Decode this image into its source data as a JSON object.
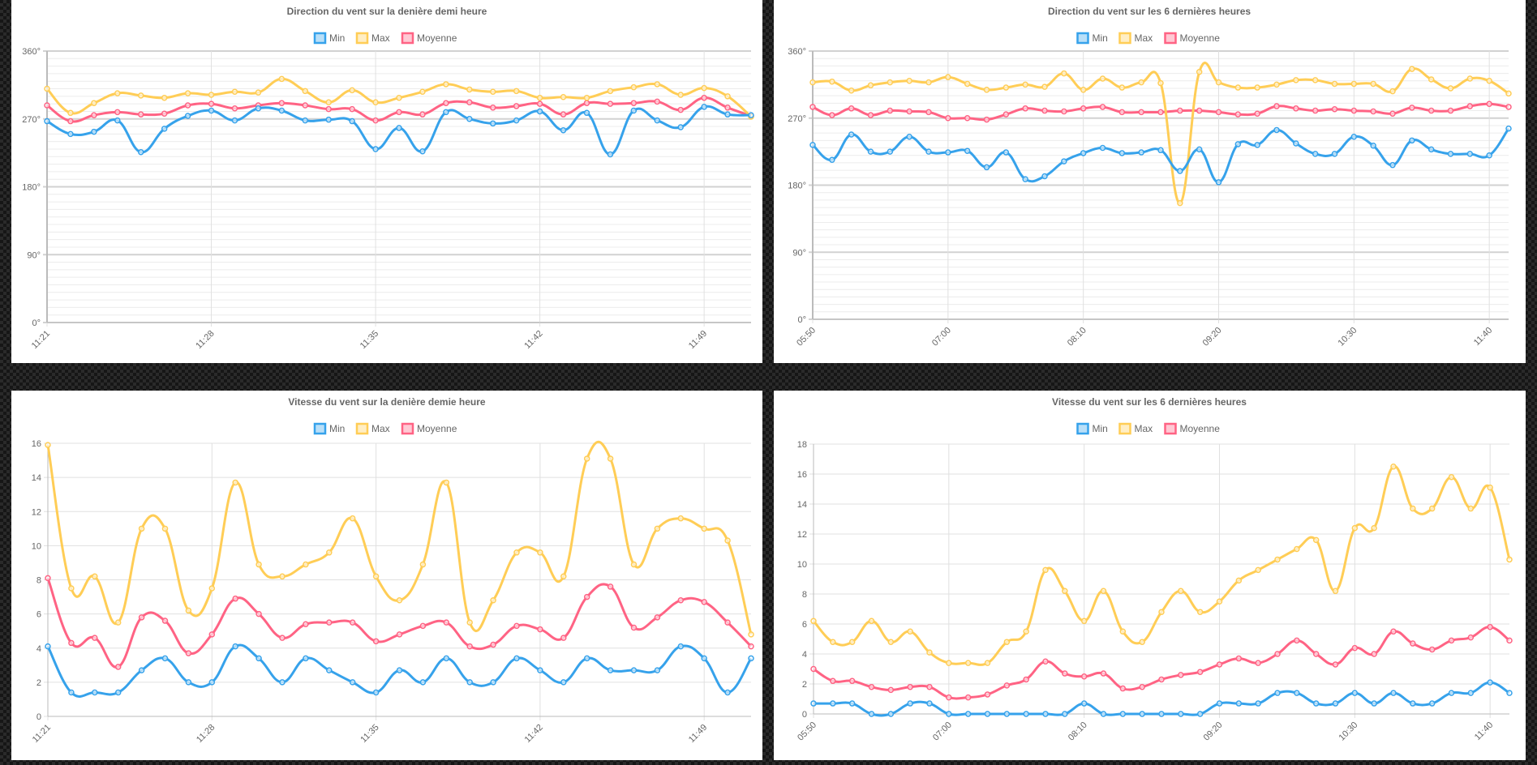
{
  "colors": {
    "min": "#36a2eb",
    "max": "#ffcd56",
    "avg": "#ff6384",
    "grid": "#e0e0e0",
    "text": "#666666"
  },
  "legend": {
    "min": "Min",
    "max": "Max",
    "avg": "Moyenne"
  },
  "chart_data": [
    {
      "type": "line",
      "title": "Direction du vent sur la denière demi heure",
      "xlabel": "",
      "ylabel": "",
      "ylim": [
        0,
        360
      ],
      "yticks": [
        "0°",
        "90°",
        "180°",
        "270°",
        "360°"
      ],
      "xticks": [
        "11:21",
        "11:28",
        "11:35",
        "11:42",
        "11:49"
      ],
      "legend_position": "top",
      "grid": true,
      "series": [
        {
          "name": "Min",
          "values": [
            267,
            250,
            253,
            268,
            226,
            257,
            274,
            281,
            268,
            284,
            281,
            268,
            269,
            267,
            230,
            258,
            227,
            279,
            270,
            264,
            268,
            280,
            255,
            278,
            223,
            281,
            268,
            259,
            286,
            276,
            275
          ]
        },
        {
          "name": "Max",
          "values": [
            310,
            278,
            291,
            304,
            301,
            298,
            304,
            302,
            306,
            305,
            323,
            307,
            292,
            308,
            292,
            298,
            306,
            316,
            309,
            306,
            307,
            298,
            299,
            298,
            307,
            312,
            316,
            302,
            311,
            300,
            273
          ]
        },
        {
          "name": "Moyenne",
          "values": [
            288,
            267,
            275,
            279,
            276,
            277,
            288,
            290,
            284,
            288,
            291,
            288,
            283,
            283,
            268,
            279,
            276,
            291,
            292,
            285,
            287,
            290,
            276,
            291,
            290,
            291,
            293,
            282,
            298,
            285,
            274
          ]
        }
      ]
    },
    {
      "type": "line",
      "title": "Direction du vent sur les 6 dernières heures",
      "xlabel": "",
      "ylabel": "",
      "ylim": [
        0,
        360
      ],
      "yticks": [
        "0°",
        "90°",
        "180°",
        "270°",
        "360°"
      ],
      "xticks": [
        "05:50",
        "07:00",
        "08:10",
        "09:20",
        "10:30",
        "11:40"
      ],
      "legend_position": "top",
      "grid": true,
      "series": [
        {
          "name": "Min",
          "values": [
            234,
            214,
            248,
            225,
            225,
            245,
            225,
            224,
            226,
            204,
            224,
            188,
            192,
            212,
            223,
            230,
            223,
            224,
            227,
            199,
            228,
            184,
            235,
            234,
            254,
            236,
            222,
            222,
            245,
            233,
            207,
            240,
            228,
            222,
            222,
            220,
            256
          ]
        },
        {
          "name": "Max",
          "values": [
            318,
            319,
            307,
            314,
            318,
            320,
            318,
            325,
            316,
            308,
            311,
            315,
            312,
            330,
            308,
            323,
            311,
            318,
            317,
            156,
            332,
            318,
            311,
            311,
            315,
            321,
            321,
            316,
            316,
            316,
            306,
            336,
            322,
            310,
            323,
            320,
            303
          ]
        },
        {
          "name": "Moyenne",
          "values": [
            285,
            274,
            283,
            274,
            280,
            279,
            278,
            270,
            270,
            268,
            275,
            283,
            280,
            279,
            283,
            285,
            278,
            278,
            278,
            280,
            280,
            278,
            275,
            276,
            286,
            283,
            280,
            282,
            280,
            279,
            276,
            284,
            280,
            280,
            286,
            289,
            285
          ]
        }
      ]
    },
    {
      "type": "line",
      "title": "Vitesse du vent sur la denière demie heure",
      "xlabel": "",
      "ylabel": "",
      "ylim": [
        0,
        16
      ],
      "yticks": [
        "0",
        "2",
        "4",
        "6",
        "8",
        "10",
        "12",
        "14",
        "16"
      ],
      "xticks": [
        "11:21",
        "11:28",
        "11:35",
        "11:42",
        "11:49"
      ],
      "legend_position": "top",
      "grid": true,
      "series": [
        {
          "name": "Min",
          "values": [
            4.1,
            1.4,
            1.4,
            1.4,
            2.7,
            3.4,
            2.0,
            2.0,
            4.1,
            3.4,
            2.0,
            3.4,
            2.7,
            2.0,
            1.4,
            2.7,
            2.0,
            3.4,
            2.0,
            2.0,
            3.4,
            2.7,
            2.0,
            3.4,
            2.7,
            2.7,
            2.7,
            4.1,
            3.4,
            1.4,
            3.4
          ]
        },
        {
          "name": "Max",
          "values": [
            15.9,
            7.5,
            8.2,
            5.5,
            11.0,
            11.0,
            6.2,
            7.5,
            13.7,
            8.9,
            8.2,
            8.9,
            9.6,
            11.6,
            8.2,
            6.8,
            8.9,
            13.7,
            5.5,
            6.8,
            9.6,
            9.6,
            8.2,
            15.1,
            15.1,
            8.9,
            11.0,
            11.6,
            11.0,
            10.3,
            4.8
          ]
        },
        {
          "name": "Moyenne",
          "values": [
            8.1,
            4.3,
            4.6,
            2.9,
            5.8,
            5.6,
            3.7,
            4.8,
            6.9,
            6.0,
            4.6,
            5.4,
            5.5,
            5.5,
            4.4,
            4.8,
            5.3,
            5.5,
            4.1,
            4.2,
            5.3,
            5.1,
            4.6,
            7.0,
            7.6,
            5.2,
            5.8,
            6.8,
            6.7,
            5.5,
            4.1
          ]
        }
      ]
    },
    {
      "type": "line",
      "title": "Vitesse du vent sur les 6 dernières heures",
      "xlabel": "",
      "ylabel": "",
      "ylim": [
        0,
        18
      ],
      "yticks": [
        "0",
        "2",
        "4",
        "6",
        "8",
        "10",
        "12",
        "14",
        "16",
        "18"
      ],
      "xticks": [
        "05:50",
        "07:00",
        "08:10",
        "09:20",
        "10:30",
        "11:40"
      ],
      "legend_position": "top",
      "grid": true,
      "series": [
        {
          "name": "Min",
          "values": [
            0.7,
            0.7,
            0.7,
            0.0,
            0.0,
            0.7,
            0.7,
            0.0,
            0.0,
            0.0,
            0.0,
            0.0,
            0.0,
            0.0,
            0.7,
            0.0,
            0.0,
            0.0,
            0.0,
            0.0,
            0.0,
            0.7,
            0.7,
            0.7,
            1.4,
            1.4,
            0.7,
            0.7,
            1.4,
            0.7,
            1.4,
            0.7,
            0.7,
            1.4,
            1.4,
            2.1,
            1.4
          ]
        },
        {
          "name": "Max",
          "values": [
            6.2,
            4.8,
            4.8,
            6.2,
            4.8,
            5.5,
            4.1,
            3.4,
            3.4,
            3.4,
            4.8,
            5.5,
            9.6,
            8.2,
            6.2,
            8.2,
            5.5,
            4.8,
            6.8,
            8.2,
            6.8,
            7.5,
            8.9,
            9.6,
            10.3,
            11.0,
            11.6,
            8.2,
            12.4,
            12.4,
            16.5,
            13.7,
            13.7,
            15.8,
            13.7,
            15.1,
            10.3
          ]
        },
        {
          "name": "Moyenne",
          "values": [
            3.0,
            2.2,
            2.2,
            1.8,
            1.6,
            1.8,
            1.8,
            1.1,
            1.1,
            1.3,
            1.9,
            2.3,
            3.5,
            2.7,
            2.5,
            2.7,
            1.7,
            1.8,
            2.3,
            2.6,
            2.8,
            3.3,
            3.7,
            3.4,
            4.0,
            4.9,
            4.0,
            3.3,
            4.4,
            4.0,
            5.5,
            4.7,
            4.3,
            4.9,
            5.1,
            5.8,
            4.9
          ]
        }
      ]
    }
  ]
}
